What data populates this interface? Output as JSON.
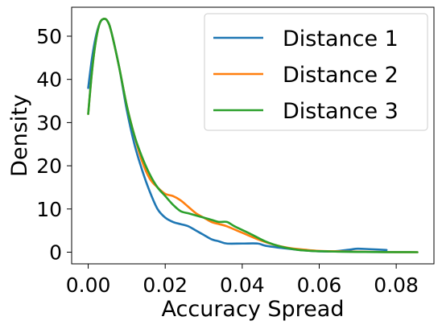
{
  "chart_data": {
    "type": "line",
    "xlabel": "Accuracy Spread",
    "ylabel": "Density",
    "xlim": [
      -0.0043,
      0.0898
    ],
    "ylim": [
      -2.7,
      56.7
    ],
    "x_ticks": [
      0.0,
      0.02,
      0.04,
      0.06,
      0.08
    ],
    "x_tick_labels": [
      "0.00",
      "0.02",
      "0.04",
      "0.06",
      "0.08"
    ],
    "y_ticks": [
      0,
      10,
      20,
      30,
      40,
      50
    ],
    "y_tick_labels": [
      "0",
      "10",
      "20",
      "30",
      "40",
      "50"
    ],
    "grid": false,
    "legend_position": "upper right",
    "series": [
      {
        "name": "Distance 1",
        "color": "#1f77b4",
        "points": [
          [
            0.0,
            38
          ],
          [
            0.001,
            45
          ],
          [
            0.002,
            50
          ],
          [
            0.003,
            53
          ],
          [
            0.004,
            54
          ],
          [
            0.005,
            53.5
          ],
          [
            0.006,
            51
          ],
          [
            0.008,
            43
          ],
          [
            0.01,
            33
          ],
          [
            0.012,
            25
          ],
          [
            0.014,
            19
          ],
          [
            0.016,
            14
          ],
          [
            0.018,
            10
          ],
          [
            0.02,
            8
          ],
          [
            0.022,
            7
          ],
          [
            0.024,
            6.5
          ],
          [
            0.026,
            6
          ],
          [
            0.028,
            5
          ],
          [
            0.03,
            4
          ],
          [
            0.032,
            3
          ],
          [
            0.034,
            2.5
          ],
          [
            0.036,
            2
          ],
          [
            0.04,
            2
          ],
          [
            0.044,
            2
          ],
          [
            0.046,
            1.5
          ],
          [
            0.05,
            1
          ],
          [
            0.055,
            0.5
          ],
          [
            0.06,
            0.2
          ],
          [
            0.064,
            0.2
          ],
          [
            0.068,
            0.6
          ],
          [
            0.07,
            0.8
          ],
          [
            0.073,
            0.7
          ],
          [
            0.0775,
            0.5
          ]
        ]
      },
      {
        "name": "Distance 2",
        "color": "#ff7f0e",
        "points": [
          [
            0.0,
            32
          ],
          [
            0.001,
            42
          ],
          [
            0.002,
            49
          ],
          [
            0.003,
            53
          ],
          [
            0.004,
            54
          ],
          [
            0.005,
            53.5
          ],
          [
            0.006,
            51
          ],
          [
            0.008,
            43
          ],
          [
            0.01,
            34
          ],
          [
            0.012,
            27
          ],
          [
            0.014,
            21
          ],
          [
            0.016,
            17
          ],
          [
            0.018,
            15
          ],
          [
            0.02,
            13.5
          ],
          [
            0.022,
            13
          ],
          [
            0.024,
            12
          ],
          [
            0.026,
            10.5
          ],
          [
            0.028,
            9
          ],
          [
            0.03,
            8
          ],
          [
            0.032,
            7
          ],
          [
            0.034,
            6.5
          ],
          [
            0.036,
            6
          ],
          [
            0.04,
            4.5
          ],
          [
            0.044,
            3
          ],
          [
            0.048,
            1.8
          ],
          [
            0.052,
            1
          ],
          [
            0.056,
            0.6
          ],
          [
            0.06,
            0.3
          ],
          [
            0.065,
            0.2
          ],
          [
            0.07,
            0.1
          ],
          [
            0.075,
            0.05
          ],
          [
            0.08,
            0.02
          ],
          [
            0.0855,
            0
          ]
        ]
      },
      {
        "name": "Distance 3",
        "color": "#2ca02c",
        "points": [
          [
            0.0,
            32
          ],
          [
            0.001,
            42
          ],
          [
            0.002,
            49
          ],
          [
            0.003,
            53
          ],
          [
            0.004,
            54
          ],
          [
            0.005,
            53.5
          ],
          [
            0.006,
            51
          ],
          [
            0.008,
            43
          ],
          [
            0.01,
            34
          ],
          [
            0.012,
            27
          ],
          [
            0.014,
            22
          ],
          [
            0.016,
            18
          ],
          [
            0.018,
            15
          ],
          [
            0.02,
            13
          ],
          [
            0.022,
            11
          ],
          [
            0.024,
            9.5
          ],
          [
            0.026,
            9
          ],
          [
            0.028,
            8.5
          ],
          [
            0.03,
            8
          ],
          [
            0.032,
            7.5
          ],
          [
            0.034,
            7
          ],
          [
            0.036,
            7
          ],
          [
            0.038,
            6
          ],
          [
            0.042,
            4.3
          ],
          [
            0.046,
            2.5
          ],
          [
            0.05,
            1.3
          ],
          [
            0.054,
            0.6
          ],
          [
            0.058,
            0.3
          ],
          [
            0.062,
            0.2
          ],
          [
            0.066,
            0.1
          ],
          [
            0.072,
            0.05
          ],
          [
            0.078,
            0.02
          ],
          [
            0.0855,
            0
          ]
        ]
      }
    ]
  }
}
